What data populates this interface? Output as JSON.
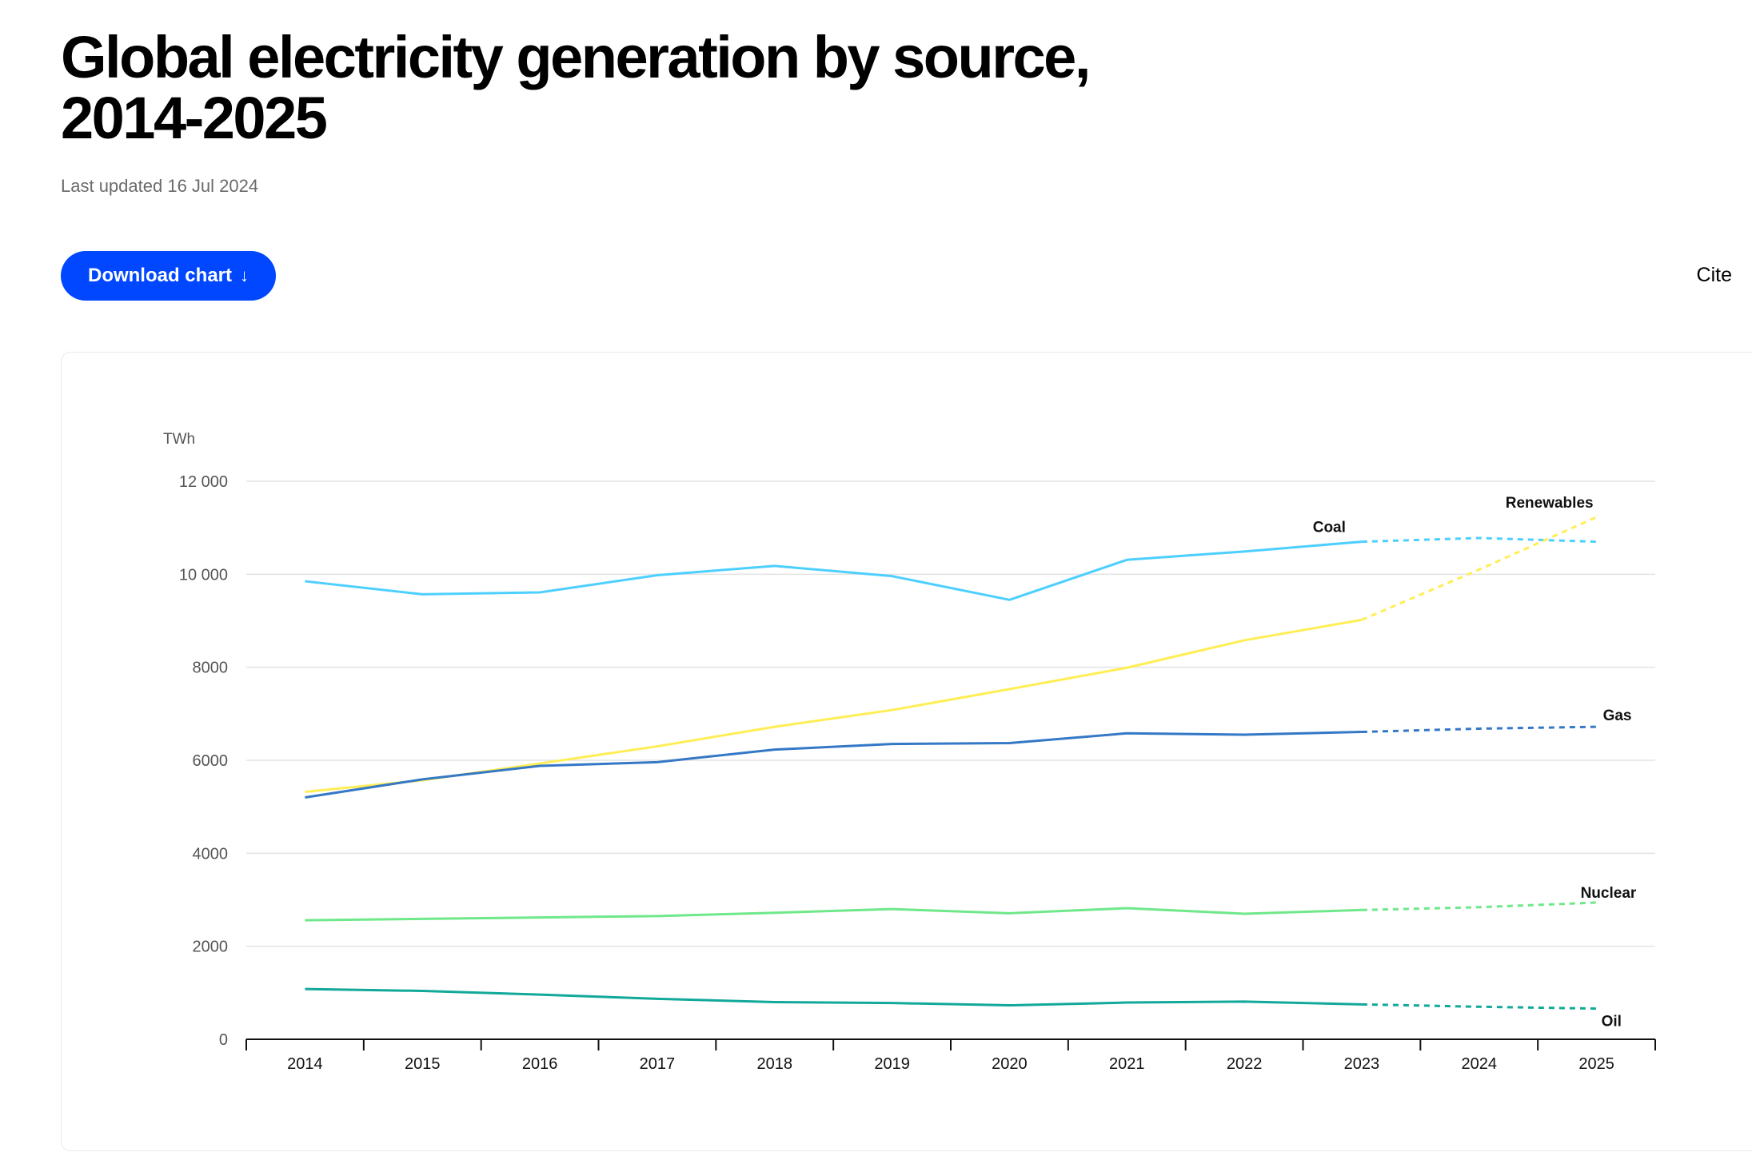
{
  "header": {
    "title_line1": "Global electricity generation by source,",
    "title_line2": "2014-2025",
    "updated": "Last updated 16 Jul 2024"
  },
  "actions": {
    "download_label": "Download chart",
    "download_icon": "arrow-down-icon",
    "cite_label": "Cite"
  },
  "colors": {
    "accent": "#0047ff"
  },
  "chart_data": {
    "type": "line",
    "title": "Global electricity generation by source, 2014-2025",
    "ylabel": "TWh",
    "xlabel": "",
    "ylim": [
      0,
      12000
    ],
    "yticks": [
      0,
      2000,
      4000,
      6000,
      8000,
      10000,
      12000
    ],
    "ytick_labels": [
      "0",
      "2000",
      "4000",
      "6000",
      "8000",
      "10 000",
      "12 000"
    ],
    "categories": [
      "2014",
      "2015",
      "2016",
      "2017",
      "2018",
      "2019",
      "2020",
      "2021",
      "2022",
      "2023",
      "2024",
      "2025"
    ],
    "forecast_from": "2023",
    "grid": true,
    "series": [
      {
        "name": "Coal",
        "color": "#4dcfff",
        "values": [
          9850,
          9570,
          9610,
          9980,
          10180,
          9960,
          9450,
          10310,
          10490,
          10700,
          10780,
          10700
        ]
      },
      {
        "name": "Renewables",
        "color": "#ffee55",
        "values": [
          5320,
          5570,
          5930,
          6300,
          6720,
          7080,
          7530,
          7990,
          8580,
          9020,
          10100,
          11230
        ]
      },
      {
        "name": "Gas",
        "color": "#3478c6",
        "values": [
          5200,
          5590,
          5880,
          5960,
          6230,
          6350,
          6370,
          6580,
          6550,
          6610,
          6680,
          6720
        ]
      },
      {
        "name": "Nuclear",
        "color": "#6fe88a",
        "values": [
          2560,
          2590,
          2620,
          2650,
          2720,
          2800,
          2710,
          2820,
          2700,
          2780,
          2840,
          2940
        ]
      },
      {
        "name": "Oil",
        "color": "#12a89a",
        "values": [
          1080,
          1040,
          960,
          870,
          800,
          780,
          730,
          790,
          810,
          750,
          700,
          660
        ]
      }
    ]
  }
}
